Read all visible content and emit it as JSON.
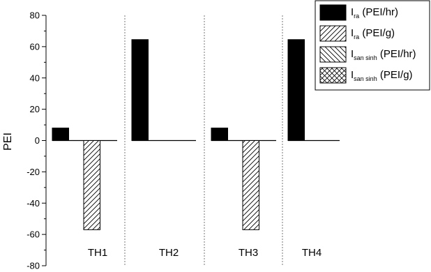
{
  "chart_data": {
    "type": "bar",
    "ylabel": "PEI",
    "ylim": [
      -80,
      80
    ],
    "yticks": [
      -80,
      -60,
      -40,
      -20,
      0,
      20,
      40,
      60,
      80
    ],
    "categories": [
      "TH1",
      "TH2",
      "TH3",
      "TH4"
    ],
    "series": [
      {
        "main": "I",
        "sub": "ra",
        "unit": " (PEI/hr)",
        "pattern": "solid",
        "values": [
          8,
          64.5,
          8,
          64.5
        ]
      },
      {
        "main": "I",
        "sub": "ra",
        "unit": " (PEI/g)",
        "pattern": "diag-right",
        "values": [
          -57,
          0,
          -57,
          0
        ]
      },
      {
        "main": "I",
        "sub": "san sinh",
        "unit": " (PEI/hr)",
        "pattern": "diag-left",
        "values": [
          0,
          0,
          0,
          0
        ]
      },
      {
        "main": "I",
        "sub": "san sinh",
        "unit": " (PEI/g)",
        "pattern": "cross",
        "values": [
          0,
          0,
          0,
          0
        ]
      }
    ],
    "legend": "top-right",
    "grid": false
  }
}
